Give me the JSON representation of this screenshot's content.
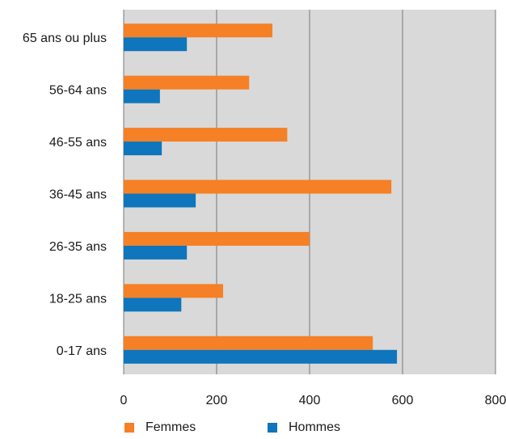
{
  "chart_data": {
    "type": "bar",
    "orientation": "horizontal",
    "categories": [
      "65 ans ou plus",
      "56-64 ans",
      "46-55 ans",
      "36-45 ans",
      "26-35 ans",
      "18-25 ans",
      "0-17 ans"
    ],
    "series": [
      {
        "name": "Femmes",
        "color": "#f58025",
        "values": [
          320,
          270,
          352,
          576,
          400,
          214,
          536
        ]
      },
      {
        "name": "Hommes",
        "color": "#0f75bc",
        "values": [
          136,
          78,
          82,
          155,
          136,
          124,
          588
        ]
      }
    ],
    "xlim": [
      0,
      800
    ],
    "xticks": [
      0,
      200,
      400,
      600,
      800
    ],
    "xtick_labels": [
      "0",
      "200",
      "400",
      "600",
      "800"
    ],
    "grid": "vertical",
    "legend_position": "bottom",
    "plot_background": "#d9d9d9",
    "gridline_color": "#777777"
  }
}
